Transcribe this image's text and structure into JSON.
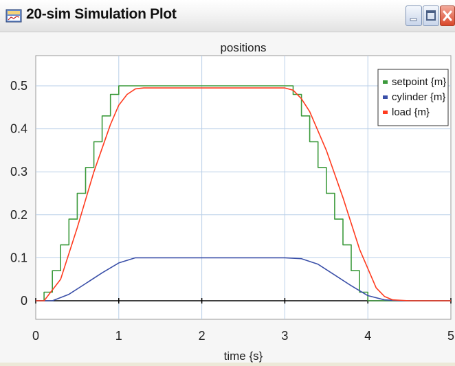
{
  "window": {
    "title": "20-sim Simulation Plot",
    "buttons": [
      "minimize",
      "maximize",
      "close"
    ]
  },
  "colors": {
    "setpoint": "#3c9a3c",
    "cylinder": "#3a4fa8",
    "load": "#ff3b1f",
    "grid": "#b9cfe8",
    "zero_line": "#000000"
  },
  "chart_data": {
    "type": "line",
    "title": "positions",
    "xlabel": "time {s}",
    "ylabel": "",
    "xlim": [
      0,
      5
    ],
    "ylim": [
      0,
      0.5
    ],
    "xticks": [
      "0",
      "1",
      "2",
      "3",
      "4",
      "5"
    ],
    "yticks": [
      "0",
      "0.1",
      "0.2",
      "0.3",
      "0.4",
      "0.5"
    ],
    "grid": true,
    "legend_position": "top-right",
    "series": [
      {
        "name": "setpoint {m}",
        "step": true,
        "x": [
          0,
          0.1,
          0.2,
          0.3,
          0.4,
          0.5,
          0.6,
          0.7,
          0.8,
          0.9,
          1.0,
          1.1,
          3.1,
          3.2,
          3.3,
          3.4,
          3.5,
          3.6,
          3.7,
          3.8,
          3.9,
          4.0,
          5.0
        ],
        "y": [
          0,
          0.02,
          0.07,
          0.13,
          0.19,
          0.25,
          0.31,
          0.37,
          0.43,
          0.48,
          0.5,
          0.5,
          0.48,
          0.43,
          0.37,
          0.31,
          0.25,
          0.19,
          0.13,
          0.07,
          0.02,
          0,
          0
        ]
      },
      {
        "name": "cylinder {m}",
        "x": [
          0,
          0.2,
          0.4,
          0.6,
          0.8,
          1.0,
          1.2,
          1.4,
          3.0,
          3.2,
          3.4,
          3.6,
          3.8,
          4.0,
          4.2,
          4.4,
          5.0
        ],
        "y": [
          0,
          0.0,
          0.015,
          0.04,
          0.065,
          0.088,
          0.1,
          0.1,
          0.1,
          0.098,
          0.085,
          0.06,
          0.035,
          0.012,
          0.002,
          0.0,
          0.0
        ]
      },
      {
        "name": "load {m}",
        "x": [
          0,
          0.1,
          0.3,
          0.5,
          0.7,
          0.9,
          1.0,
          1.1,
          1.2,
          1.3,
          3.0,
          3.1,
          3.2,
          3.3,
          3.5,
          3.7,
          3.9,
          4.1,
          4.2,
          4.3,
          4.5,
          5.0
        ],
        "y": [
          0,
          0.0,
          0.05,
          0.17,
          0.3,
          0.41,
          0.455,
          0.48,
          0.493,
          0.495,
          0.495,
          0.49,
          0.47,
          0.44,
          0.35,
          0.24,
          0.12,
          0.03,
          0.01,
          0.002,
          0.0,
          0.0
        ]
      }
    ]
  }
}
